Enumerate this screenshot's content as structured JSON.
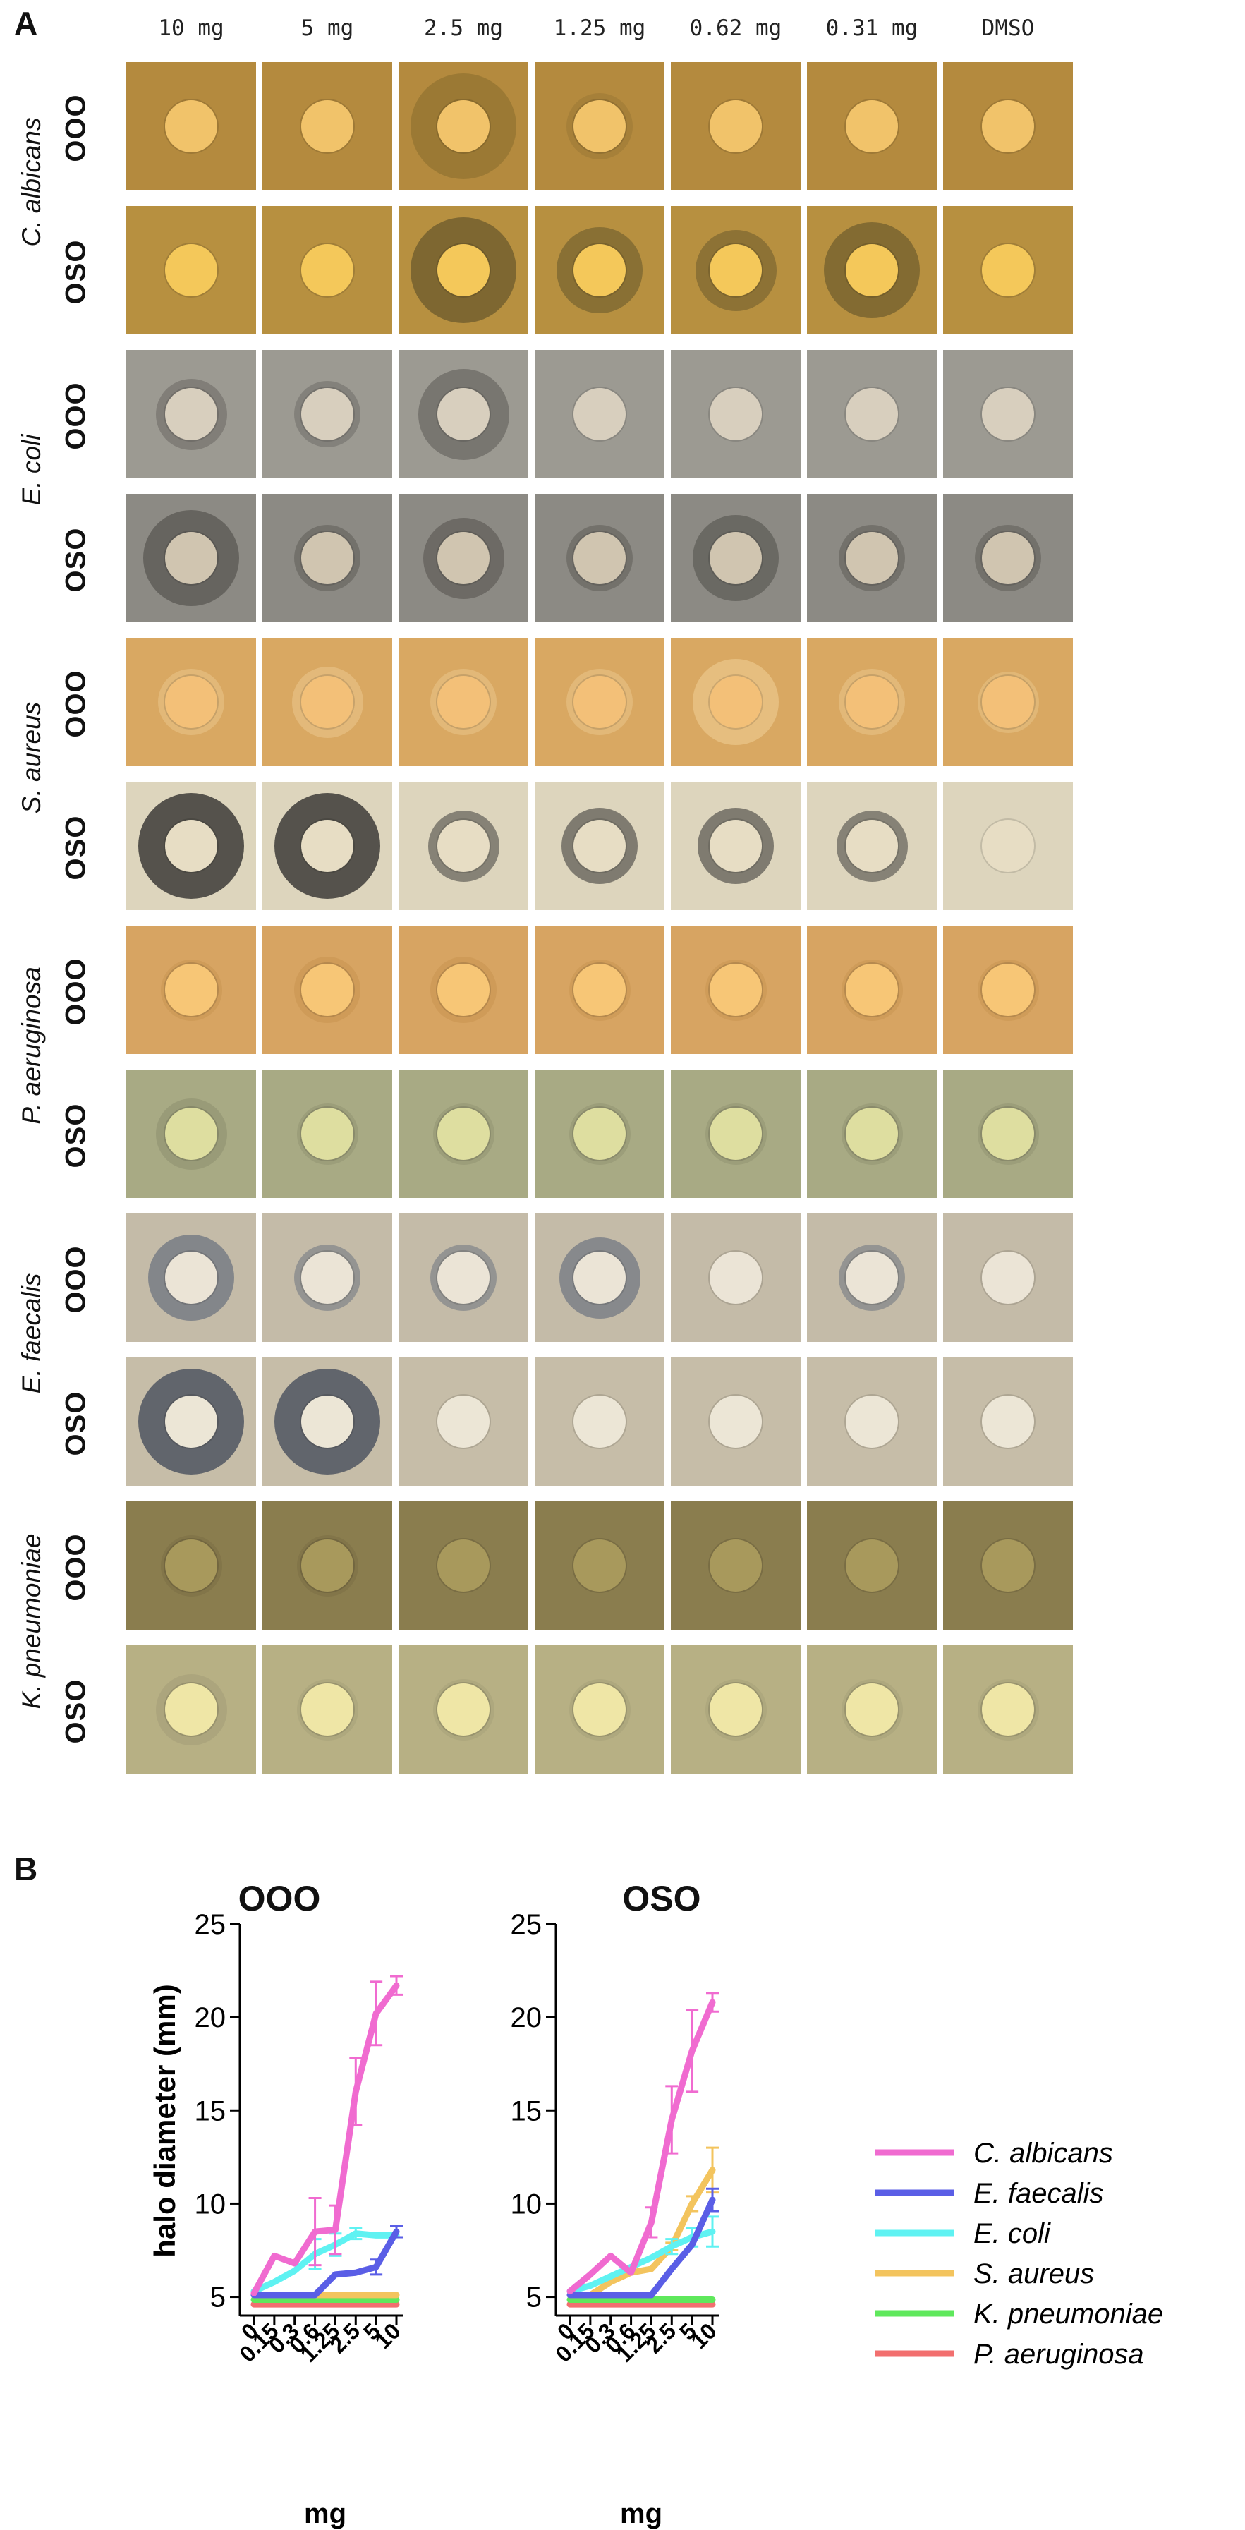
{
  "panel_labels": {
    "a": "A",
    "b": "B"
  },
  "concentrations": [
    "10 mg",
    "5 mg",
    "2.5 mg",
    "1.25 mg",
    "0.62 mg",
    "0.31 mg",
    "DMSO"
  ],
  "treatments": [
    "OOO",
    "OSO"
  ],
  "species": [
    "C. albicans",
    "E. coli",
    "S. aureus",
    "P. aeruginosa",
    "E. faecalis",
    "K. pneumoniae"
  ],
  "colors": {
    "C. albicans": "#f06bd0",
    "E. faecalis": "#5a5ee6",
    "E. coli": "#5ff2f2",
    "S. aureus": "#f3c45e",
    "K. pneumoniae": "#5fe85c",
    "P. aeruginosa": "#f26f6f"
  },
  "plate_rows": [
    {
      "species": "C. albicans",
      "treatment": "OOO",
      "bg": "#b48a3e",
      "disc": "#f1c36a",
      "halo": "#9a7834",
      "halos": [
        0,
        0,
        1,
        0.2,
        0,
        0,
        0
      ]
    },
    {
      "species": "C. albicans",
      "treatment": "OSO",
      "bg": "#b79040",
      "disc": "#f4c85a",
      "halo": "#7a6530",
      "halos": [
        0,
        0,
        1,
        0.6,
        0.5,
        0.8,
        0
      ]
    },
    {
      "species": "E. coli",
      "treatment": "OOO",
      "bg": "#9c9a92",
      "disc": "#d8cfbe",
      "halo": "#6f6d68",
      "halos": [
        0.3,
        0.2,
        0.7,
        0,
        0,
        0,
        0
      ]
    },
    {
      "species": "E. coli",
      "treatment": "OSO",
      "bg": "#8c8a84",
      "disc": "#d0c5b0",
      "halo": "#5f5d58",
      "halos": [
        0.8,
        0.2,
        0.5,
        0.2,
        0.6,
        0.2,
        0.2
      ]
    },
    {
      "species": "S. aureus",
      "treatment": "OOO",
      "bg": "#d9a862",
      "disc": "#f3c078",
      "halo": "#e9c58a",
      "halos": [
        0.2,
        0.3,
        0.2,
        0.2,
        0.6,
        0.2,
        0.1
      ]
    },
    {
      "species": "S. aureus",
      "treatment": "OSO",
      "bg": "#ddd5bd",
      "disc": "#e7ddc4",
      "halo": "#4d4b46",
      "halos": [
        1,
        1,
        0.3,
        0.4,
        0.4,
        0.3,
        0
      ]
    },
    {
      "species": "P. aeruginosa",
      "treatment": "OOO",
      "bg": "#d7a462",
      "disc": "#f7c676",
      "halo": "#c89450",
      "halos": [
        0.1,
        0.2,
        0.2,
        0.1,
        0.1,
        0.1,
        0.1
      ]
    },
    {
      "species": "P. aeruginosa",
      "treatment": "OSO",
      "bg": "#a8aa84",
      "disc": "#dedea0",
      "halo": "#8f9170",
      "halos": [
        0.3,
        0.1,
        0.1,
        0.1,
        0.1,
        0.1,
        0.1
      ]
    },
    {
      "species": "E. faecalis",
      "treatment": "OOO",
      "bg": "#c4bba8",
      "disc": "#ebe4d6",
      "halo": "#6d7480",
      "halos": [
        0.6,
        0.2,
        0.2,
        0.5,
        0,
        0.2,
        0
      ]
    },
    {
      "species": "E. faecalis",
      "treatment": "OSO",
      "bg": "#c6bda8",
      "disc": "#ece6d6",
      "halo": "#5c6068",
      "halos": [
        1,
        1,
        0,
        0,
        0,
        0,
        0
      ]
    },
    {
      "species": "K. pneumoniae",
      "treatment": "OOO",
      "bg": "#8a7d4e",
      "disc": "#a8995c",
      "halo": "#7a6e44",
      "halos": [
        0.1,
        0.1,
        0,
        0,
        0,
        0,
        0
      ]
    },
    {
      "species": "K. pneumoniae",
      "treatment": "OSO",
      "bg": "#b7b084",
      "disc": "#efe6a6",
      "halo": "#a59f78",
      "halos": [
        0.3,
        0.1,
        0.1,
        0.1,
        0.1,
        0.1,
        0.1
      ]
    }
  ],
  "chart_data": [
    {
      "type": "line",
      "title": "OOO",
      "xlabel": "mg",
      "ylabel": "halo diameter (mm)",
      "categories": [
        "0",
        "0.15",
        "0.3",
        "0.6",
        "1.25",
        "2.5",
        "5",
        "10"
      ],
      "ylim": [
        4,
        25
      ],
      "yticks": [
        5,
        10,
        15,
        20,
        25
      ],
      "series": [
        {
          "name": "C. albicans",
          "values": [
            5.2,
            7.2,
            6.8,
            8.5,
            8.6,
            16,
            20.2,
            21.7
          ],
          "errors": [
            0,
            0,
            0,
            1.8,
            1.3,
            1.8,
            1.7,
            0.5
          ]
        },
        {
          "name": "E. faecalis",
          "values": [
            5.1,
            5.1,
            5.1,
            5.1,
            6.2,
            6.3,
            6.6,
            8.5
          ],
          "errors": [
            0,
            0,
            0,
            0,
            0,
            0,
            0.4,
            0.3
          ]
        },
        {
          "name": "E. coli",
          "values": [
            5.3,
            5.8,
            6.4,
            7.3,
            7.8,
            8.4,
            8.3,
            8.3
          ],
          "errors": [
            0,
            0,
            0,
            0.8,
            0.6,
            0.3,
            0,
            0
          ]
        },
        {
          "name": "S. aureus",
          "values": [
            5.1,
            5.1,
            5.1,
            5.1,
            5.1,
            5.1,
            5.1,
            5.1
          ],
          "errors": [
            0,
            0,
            0,
            0,
            0,
            0,
            0,
            0
          ]
        },
        {
          "name": "K. pneumoniae",
          "values": [
            4.85,
            4.85,
            4.85,
            4.85,
            4.85,
            4.85,
            4.85,
            4.85
          ],
          "errors": [
            0,
            0,
            0,
            0,
            0,
            0,
            0,
            0
          ]
        },
        {
          "name": "P. aeruginosa",
          "values": [
            4.6,
            4.6,
            4.6,
            4.6,
            4.6,
            4.6,
            4.6,
            4.6
          ],
          "errors": [
            0,
            0,
            0,
            0,
            0,
            0,
            0,
            0
          ]
        }
      ]
    },
    {
      "type": "line",
      "title": "OSO",
      "xlabel": "mg",
      "ylabel": "",
      "categories": [
        "0",
        "0.15",
        "0.3",
        "0.6",
        "1.25",
        "2.5",
        "5",
        "10"
      ],
      "ylim": [
        4,
        25
      ],
      "yticks": [
        5,
        10,
        15,
        20,
        25
      ],
      "series": [
        {
          "name": "C. albicans",
          "values": [
            5.3,
            6.2,
            7.2,
            6.3,
            9.0,
            14.5,
            18.2,
            20.8
          ],
          "errors": [
            0,
            0,
            0,
            0,
            0.8,
            1.8,
            2.2,
            0.5
          ]
        },
        {
          "name": "E. faecalis",
          "values": [
            5.1,
            5.1,
            5.1,
            5.1,
            5.1,
            6.5,
            7.8,
            10.2
          ],
          "errors": [
            0,
            0,
            0,
            0,
            0,
            0,
            0,
            0.6
          ]
        },
        {
          "name": "E. coli",
          "values": [
            5.3,
            5.6,
            6.1,
            6.6,
            7.1,
            7.7,
            8.2,
            8.5
          ],
          "errors": [
            0,
            0,
            0,
            0,
            0,
            0.4,
            0.5,
            0.8
          ]
        },
        {
          "name": "S. aureus",
          "values": [
            5.1,
            5.1,
            5.8,
            6.3,
            6.5,
            7.7,
            10,
            11.8
          ],
          "errors": [
            0,
            0,
            0,
            0,
            0,
            0.2,
            0.4,
            1.2
          ]
        },
        {
          "name": "K. pneumoniae",
          "values": [
            4.85,
            4.85,
            4.85,
            4.85,
            4.85,
            4.85,
            4.85,
            4.85
          ],
          "errors": [
            0,
            0,
            0,
            0,
            0,
            0,
            0,
            0
          ]
        },
        {
          "name": "P. aeruginosa",
          "values": [
            4.6,
            4.6,
            4.6,
            4.6,
            4.6,
            4.6,
            4.6,
            4.6
          ],
          "errors": [
            0,
            0,
            0,
            0,
            0,
            0,
            0,
            0
          ]
        }
      ]
    }
  ],
  "legend": [
    "C. albicans",
    "E. faecalis",
    "E. coli",
    "S. aureus",
    "K. pneumoniae",
    "P. aeruginosa"
  ]
}
